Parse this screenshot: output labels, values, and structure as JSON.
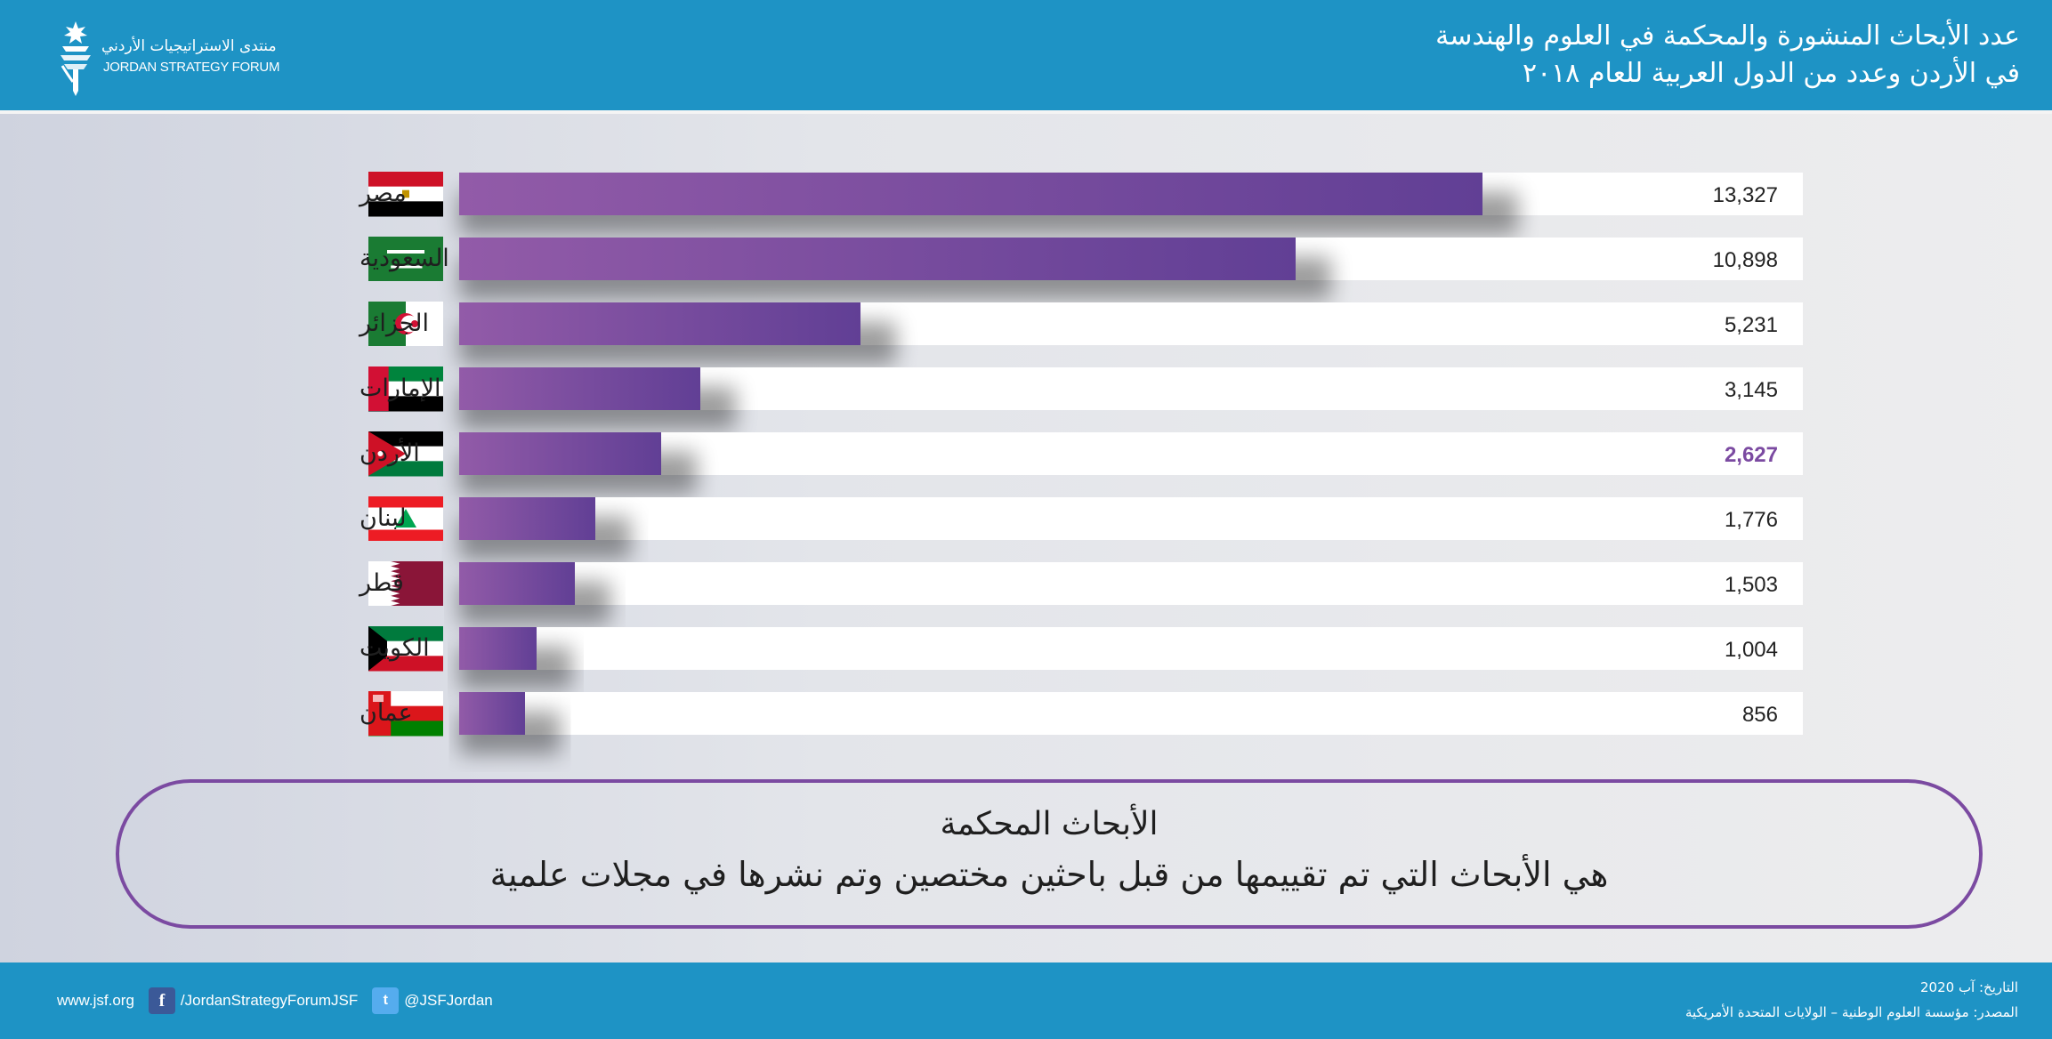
{
  "header": {
    "logo_ar": "منتدى الاستراتيجيات الأردني",
    "logo_en": "JORDAN STRATEGY FORUM",
    "title_line1": "عدد الأبحاث المنشورة والمحكمة في العلوم والهندسة",
    "title_line2": "في الأردن وعدد من الدول العربية للعام ٢٠١٨"
  },
  "colors": {
    "header_bg": "#1e93c5",
    "bar_start": "#925ba8",
    "bar_end": "#613f95",
    "highlight_value": "#7b4aa1",
    "track": "#ffffff"
  },
  "chart_data": {
    "type": "bar",
    "orientation": "horizontal",
    "categories": [
      "مصر",
      "السعودية",
      "الجزائر",
      "الإمارات",
      "الأردن",
      "لبنان",
      "قطر",
      "الكويت",
      "عمان"
    ],
    "values": [
      13327,
      10898,
      5231,
      3145,
      2627,
      1776,
      1503,
      1004,
      856
    ],
    "value_labels": [
      "13,327",
      "10,898",
      "5,231",
      "3,145",
      "2,627",
      "1,776",
      "1,503",
      "1,004",
      "856"
    ],
    "flags": [
      "egypt-flag-icon",
      "saudi-arabia-flag-icon",
      "algeria-flag-icon",
      "uae-flag-icon",
      "jordan-flag-icon",
      "lebanon-flag-icon",
      "qatar-flag-icon",
      "kuwait-flag-icon",
      "oman-flag-icon"
    ],
    "highlight": "الأردن",
    "xlim": [
      0,
      17500
    ],
    "grid": false
  },
  "definition": {
    "title": "الأبحاث المحكمة",
    "text": "هي الأبحاث التي تم تقييمها من قبل باحثين مختصين وتم نشرها في مجلات علمية"
  },
  "footer": {
    "website": "www.jsf.org",
    "facebook": "/JordanStrategyForumJSF",
    "twitter": "@JSFJordan",
    "date": "التاريخ: آب 2020",
    "source": "المصدر: مؤسسة العلوم الوطنية – الولايات المتحدة الأمريكية"
  }
}
